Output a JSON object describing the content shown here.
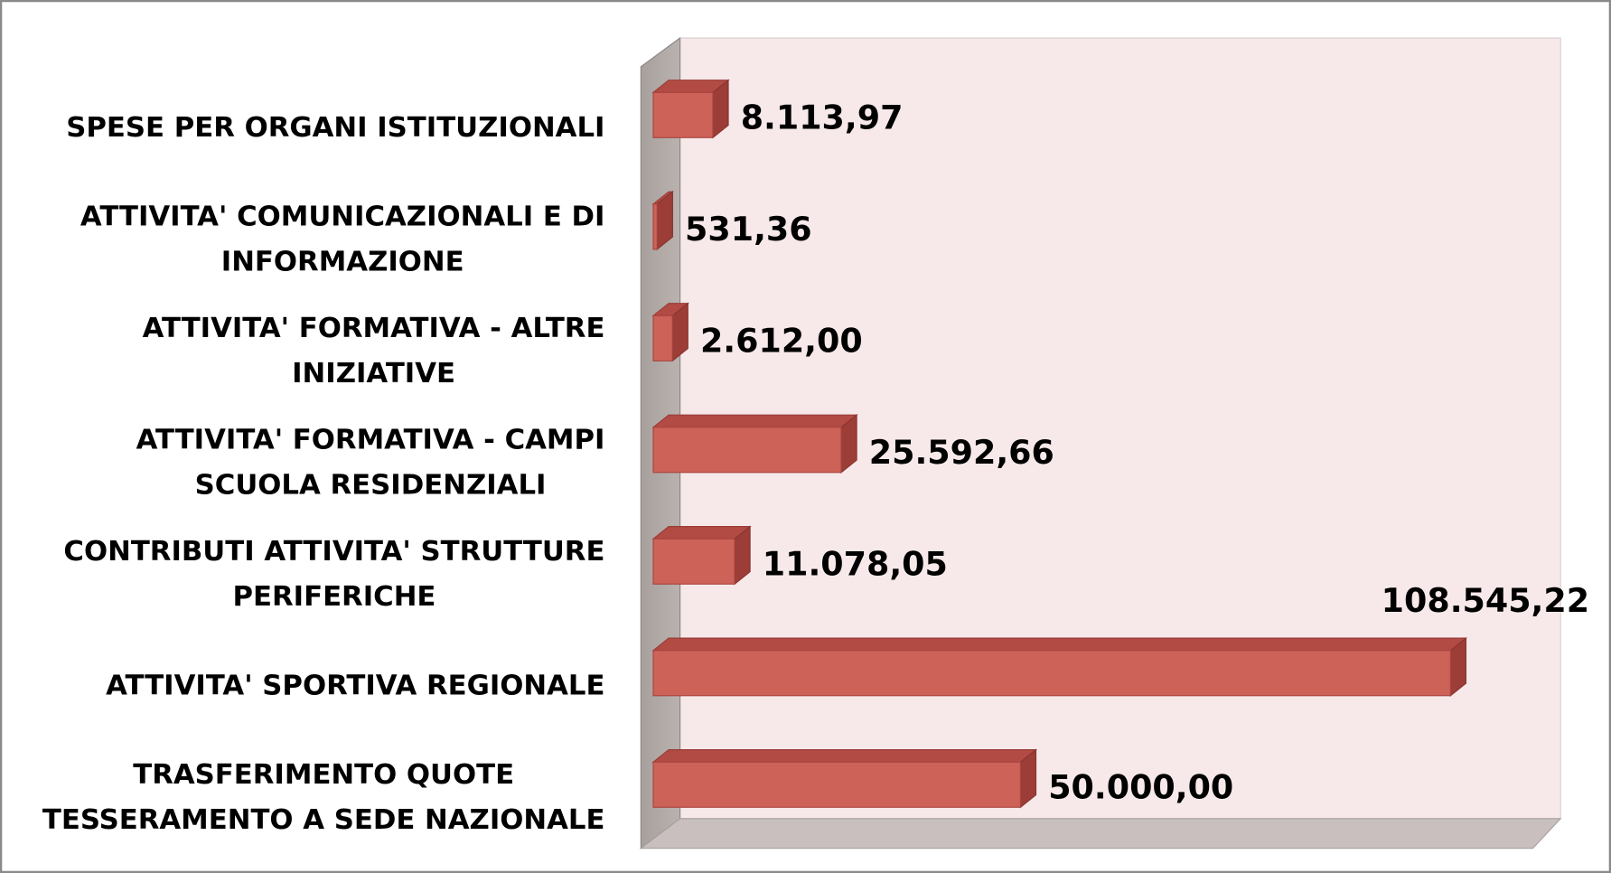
{
  "chart_data": {
    "type": "bar3d_horizontal",
    "categories": [
      "SPESE PER ORGANI ISTITUZIONALI",
      "ATTIVITA'  COMUNICAZIONALI E DI\nINFORMAZIONE",
      "ATTIVITA' FORMATIVA - ALTRE\nINIZIATIVE",
      "ATTIVITA' FORMATIVA - CAMPI\nSCUOLA RESIDENZIALI",
      "CONTRIBUTI ATTIVITA' STRUTTURE\nPERIFERICHE",
      "ATTIVITA' SPORTIVA REGIONALE",
      "TRASFERIMENTO QUOTE\nTESSERAMENTO A SEDE NAZIONALE"
    ],
    "values": [
      8113.97,
      531.36,
      2612.0,
      25592.66,
      11078.05,
      108545.22,
      50000.0
    ],
    "value_labels": [
      "8.113,97",
      "531,36",
      "2.612,00",
      "25.592,66",
      "11.078,05",
      "108.545,22",
      "50.000,00"
    ],
    "color": "#cd6259"
  }
}
